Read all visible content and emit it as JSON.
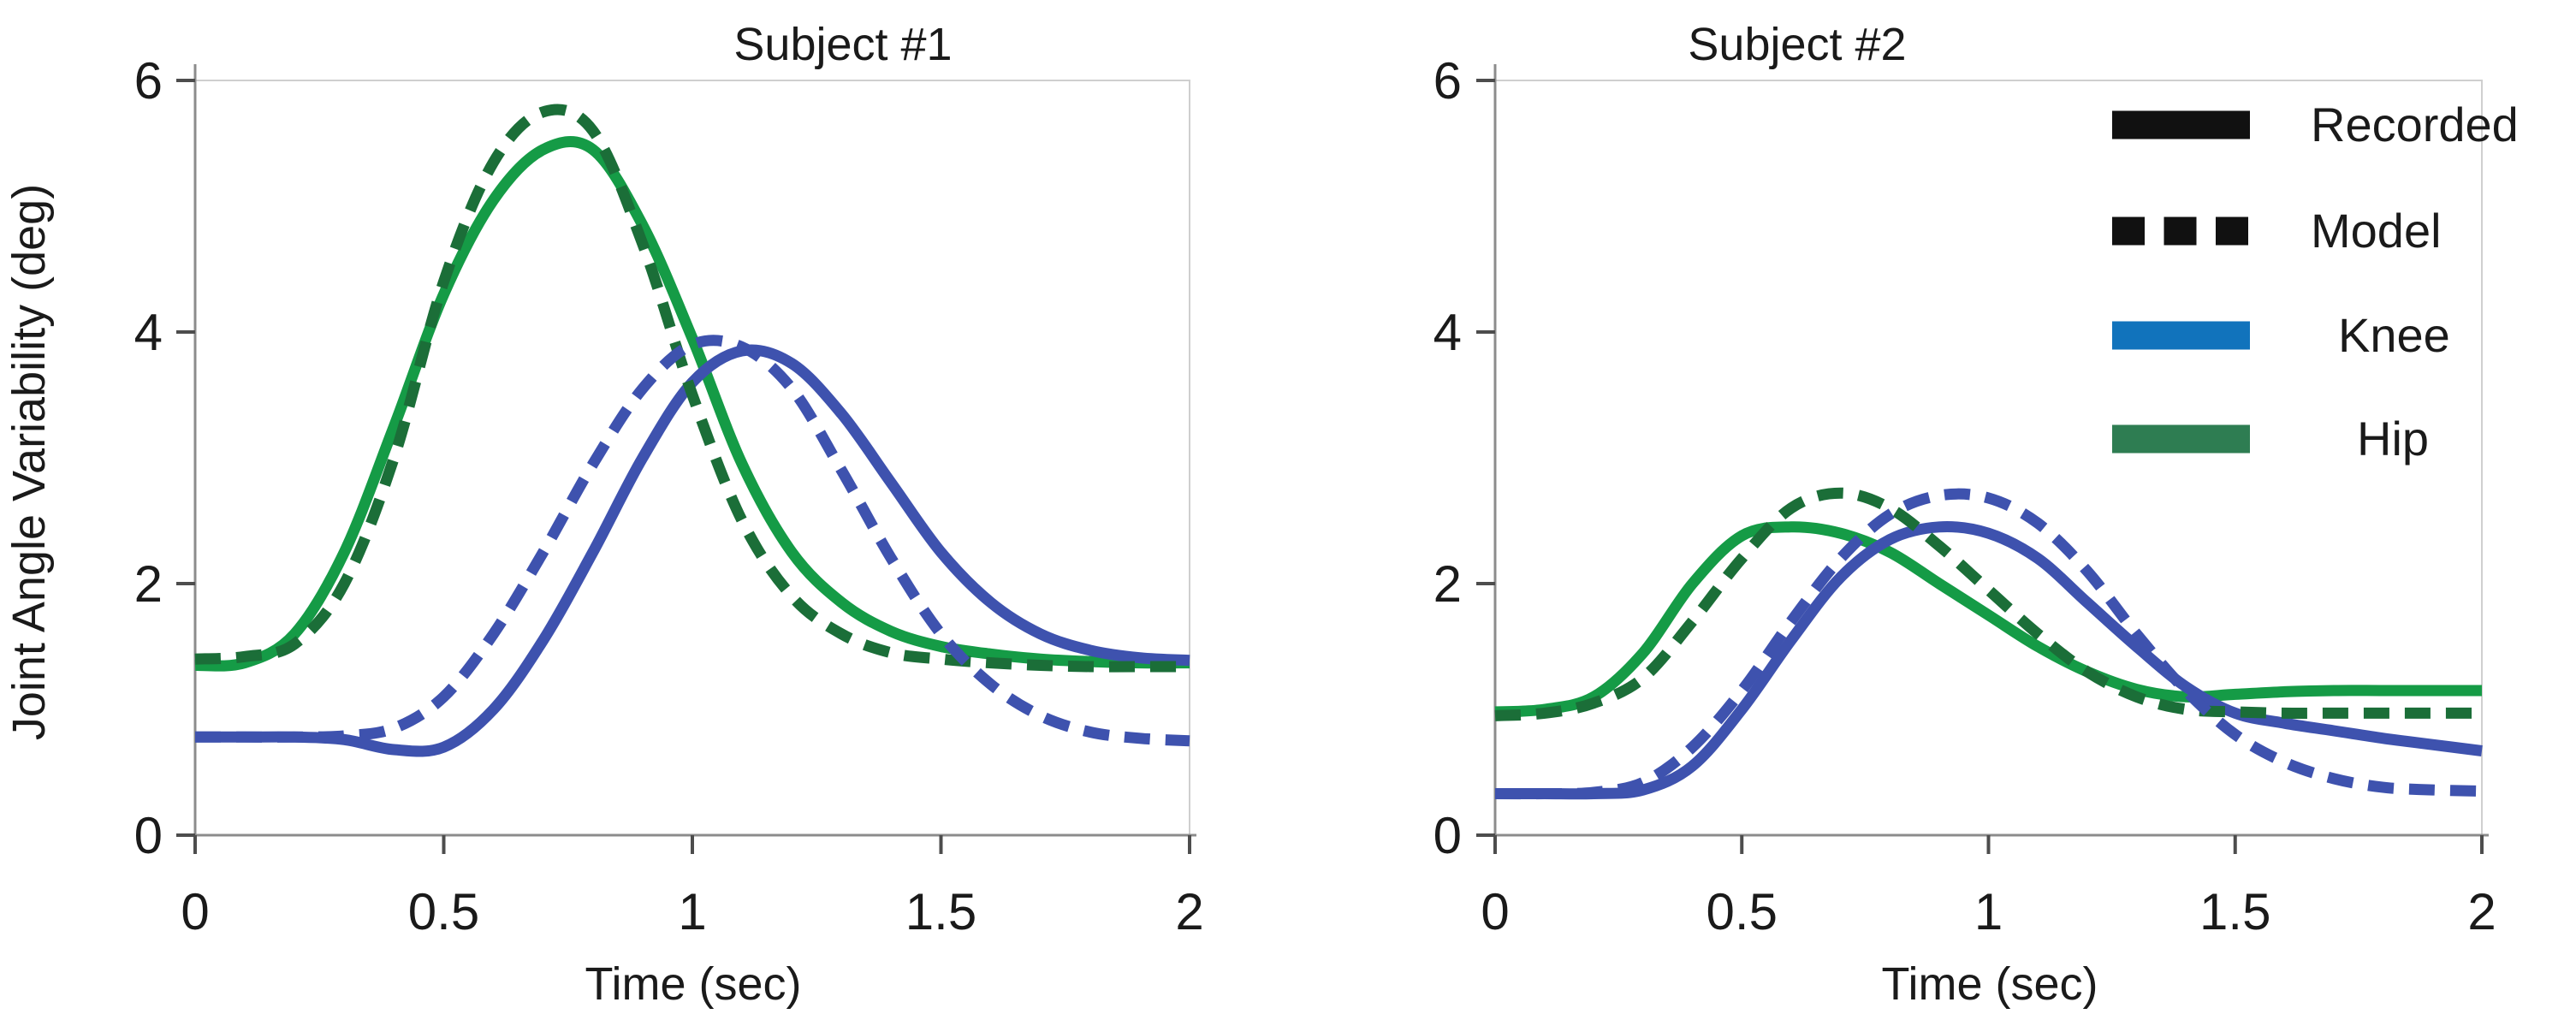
{
  "figure": {
    "background": "#ffffff",
    "description": "Joint angle variability over time for two subjects, recorded vs model, knee and hip"
  },
  "legend": {
    "position": "top-right-outside",
    "items": [
      {
        "label": "Recorded",
        "line_style": "solid",
        "color": "#111111"
      },
      {
        "label": "Model",
        "line_style": "dashed",
        "color": "#111111"
      },
      {
        "label": "Knee",
        "line_style": "solid",
        "color": "#1173bc"
      },
      {
        "label": "Hip",
        "line_style": "solid",
        "color": "#2e7d52"
      }
    ]
  },
  "chart_data": [
    {
      "type": "line",
      "title": "Subject #1",
      "xlabel": "Time (sec)",
      "ylabel": "Joint Angle Variability (deg)",
      "xlim": [
        0,
        2
      ],
      "ylim": [
        0,
        6
      ],
      "xticks": [
        0,
        0.5,
        1,
        1.5,
        2
      ],
      "xtick_labels": [
        "0",
        "0.5",
        "1",
        "1.5",
        "2"
      ],
      "yticks": [
        0,
        2,
        4,
        6
      ],
      "ytick_labels": [
        "0",
        "2",
        "4",
        "6"
      ],
      "grid": false,
      "x": [
        0,
        0.1,
        0.2,
        0.3,
        0.4,
        0.5,
        0.6,
        0.7,
        0.8,
        0.9,
        1.0,
        1.1,
        1.2,
        1.3,
        1.4,
        1.5,
        1.6,
        1.7,
        1.8,
        1.9,
        2.0
      ],
      "series": [
        {
          "name": "Hip Recorded",
          "joint": "Hip",
          "source": "Recorded",
          "style": "solid",
          "color": "#159b46",
          "values": [
            1.35,
            1.37,
            1.6,
            2.25,
            3.25,
            4.3,
            5.05,
            5.45,
            5.45,
            4.85,
            3.95,
            2.95,
            2.25,
            1.85,
            1.62,
            1.5,
            1.44,
            1.4,
            1.38,
            1.37,
            1.37
          ]
        },
        {
          "name": "Hip Model",
          "joint": "Hip",
          "source": "Model",
          "style": "dashed",
          "color": "#1b6e38",
          "values": [
            1.4,
            1.42,
            1.52,
            2.0,
            3.0,
            4.4,
            5.35,
            5.75,
            5.6,
            4.7,
            3.5,
            2.5,
            1.9,
            1.6,
            1.45,
            1.4,
            1.37,
            1.35,
            1.34,
            1.34,
            1.34
          ]
        },
        {
          "name": "Knee Recorded",
          "joint": "Knee",
          "source": "Recorded",
          "style": "solid",
          "color": "#3e52ae",
          "values": [
            0.78,
            0.78,
            0.78,
            0.76,
            0.68,
            0.7,
            1.0,
            1.55,
            2.25,
            3.0,
            3.6,
            3.85,
            3.75,
            3.35,
            2.8,
            2.25,
            1.85,
            1.6,
            1.47,
            1.41,
            1.39
          ]
        },
        {
          "name": "Knee Model",
          "joint": "Knee",
          "source": "Model",
          "style": "dashed",
          "color": "#3e52ae",
          "values": [
            0.78,
            0.78,
            0.78,
            0.79,
            0.85,
            1.1,
            1.6,
            2.25,
            2.95,
            3.55,
            3.9,
            3.88,
            3.55,
            2.9,
            2.2,
            1.6,
            1.2,
            0.95,
            0.82,
            0.77,
            0.75
          ]
        }
      ]
    },
    {
      "type": "line",
      "title": "Subject #2",
      "xlabel": "Time (sec)",
      "ylabel": "",
      "xlim": [
        0,
        2
      ],
      "ylim": [
        0,
        6
      ],
      "xticks": [
        0,
        0.5,
        1,
        1.5,
        2
      ],
      "xtick_labels": [
        "0",
        "0.5",
        "1",
        "1.5",
        "2"
      ],
      "yticks": [
        0,
        2,
        4,
        6
      ],
      "ytick_labels": [
        "0",
        "2",
        "4",
        "6"
      ],
      "grid": false,
      "x": [
        0,
        0.1,
        0.2,
        0.3,
        0.4,
        0.5,
        0.6,
        0.7,
        0.8,
        0.9,
        1.0,
        1.1,
        1.2,
        1.3,
        1.4,
        1.5,
        1.6,
        1.7,
        1.8,
        1.9,
        2.0
      ],
      "series": [
        {
          "name": "Hip Recorded",
          "joint": "Hip",
          "source": "Recorded",
          "style": "solid",
          "color": "#159b46",
          "values": [
            0.98,
            1.0,
            1.1,
            1.45,
            2.0,
            2.38,
            2.45,
            2.4,
            2.25,
            2.0,
            1.75,
            1.5,
            1.3,
            1.16,
            1.1,
            1.12,
            1.14,
            1.15,
            1.15,
            1.15,
            1.15
          ]
        },
        {
          "name": "Hip Model",
          "joint": "Hip",
          "source": "Model",
          "style": "dashed",
          "color": "#1b6e38",
          "values": [
            0.95,
            0.97,
            1.05,
            1.25,
            1.7,
            2.2,
            2.6,
            2.72,
            2.6,
            2.3,
            1.95,
            1.6,
            1.3,
            1.1,
            1.0,
            0.98,
            0.97,
            0.97,
            0.97,
            0.97,
            0.97
          ]
        },
        {
          "name": "Knee Recorded",
          "joint": "Knee",
          "source": "Recorded",
          "style": "solid",
          "color": "#3e52ae",
          "values": [
            0.33,
            0.33,
            0.33,
            0.36,
            0.55,
            1.0,
            1.55,
            2.05,
            2.35,
            2.45,
            2.4,
            2.2,
            1.85,
            1.5,
            1.18,
            0.97,
            0.89,
            0.83,
            0.77,
            0.72,
            0.67
          ]
        },
        {
          "name": "Knee Model",
          "joint": "Knee",
          "source": "Model",
          "style": "dashed",
          "color": "#3e52ae",
          "values": [
            0.33,
            0.33,
            0.34,
            0.42,
            0.7,
            1.15,
            1.7,
            2.2,
            2.55,
            2.7,
            2.68,
            2.48,
            2.1,
            1.6,
            1.15,
            0.8,
            0.58,
            0.45,
            0.38,
            0.36,
            0.35
          ]
        }
      ]
    }
  ]
}
